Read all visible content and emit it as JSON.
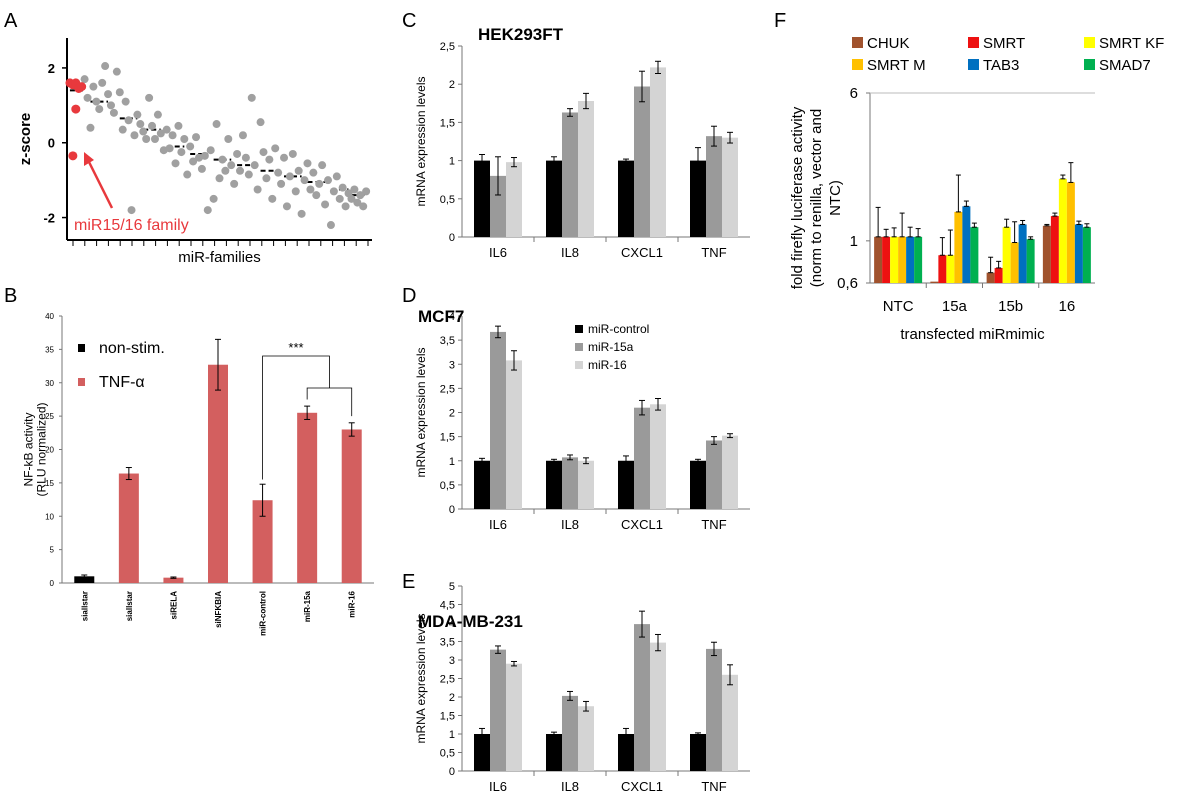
{
  "colors": {
    "black": "#000000",
    "dark_gray": "#9a9a9a",
    "light_gray": "#d4d4d4",
    "red_bar": "#d35f5f",
    "scatter_gray": "#a0a0a0",
    "scatter_red": "#e8393d",
    "CHUK": "#a0522d",
    "SMRT": "#ee1111",
    "SMRT KF": "#ffff00",
    "SMRT M": "#ffc000",
    "TAB3": "#0070c0",
    "SMAD7": "#00b050"
  },
  "chart_data": [
    {
      "panel": "A",
      "type": "scatter",
      "xlabel": "miR-families",
      "ylabel": "z-score",
      "yticks": [
        "2",
        "0",
        "-2"
      ],
      "ylim": [
        -2.6,
        2.8
      ],
      "annotation": "miR15/16 family",
      "highlight_points": [
        {
          "x": 1,
          "y": 1.6
        },
        {
          "x": 2,
          "y": 1.55
        },
        {
          "x": 3,
          "y": 1.6
        },
        {
          "x": 4,
          "y": 1.45
        },
        {
          "x": 5,
          "y": 1.5
        },
        {
          "x": 3,
          "y": 0.9
        },
        {
          "x": 2,
          "y": -0.35
        }
      ],
      "points": [
        {
          "x": 6,
          "y": 1.7
        },
        {
          "x": 7,
          "y": 1.2
        },
        {
          "x": 8,
          "y": 0.4
        },
        {
          "x": 9,
          "y": 1.5
        },
        {
          "x": 10,
          "y": 1.1
        },
        {
          "x": 11,
          "y": 0.9
        },
        {
          "x": 12,
          "y": 1.6
        },
        {
          "x": 13,
          "y": 2.05
        },
        {
          "x": 14,
          "y": 1.3
        },
        {
          "x": 15,
          "y": 1.0
        },
        {
          "x": 16,
          "y": 0.8
        },
        {
          "x": 17,
          "y": 1.9
        },
        {
          "x": 18,
          "y": 1.35
        },
        {
          "x": 19,
          "y": 0.35
        },
        {
          "x": 20,
          "y": 1.1
        },
        {
          "x": 21,
          "y": 0.6
        },
        {
          "x": 22,
          "y": -1.8
        },
        {
          "x": 23,
          "y": 0.2
        },
        {
          "x": 24,
          "y": 0.75
        },
        {
          "x": 25,
          "y": 0.5
        },
        {
          "x": 26,
          "y": 0.3
        },
        {
          "x": 27,
          "y": 0.1
        },
        {
          "x": 28,
          "y": 1.2
        },
        {
          "x": 29,
          "y": 0.45
        },
        {
          "x": 30,
          "y": 0.1
        },
        {
          "x": 31,
          "y": 0.75
        },
        {
          "x": 32,
          "y": 0.25
        },
        {
          "x": 33,
          "y": -0.2
        },
        {
          "x": 34,
          "y": 0.35
        },
        {
          "x": 35,
          "y": -0.15
        },
        {
          "x": 36,
          "y": 0.2
        },
        {
          "x": 37,
          "y": -0.55
        },
        {
          "x": 38,
          "y": 0.45
        },
        {
          "x": 39,
          "y": -0.25
        },
        {
          "x": 40,
          "y": 0.1
        },
        {
          "x": 41,
          "y": -0.85
        },
        {
          "x": 42,
          "y": -0.1
        },
        {
          "x": 43,
          "y": -0.5
        },
        {
          "x": 44,
          "y": 0.15
        },
        {
          "x": 45,
          "y": -0.4
        },
        {
          "x": 46,
          "y": -0.7
        },
        {
          "x": 47,
          "y": -0.35
        },
        {
          "x": 48,
          "y": -1.8
        },
        {
          "x": 49,
          "y": -0.2
        },
        {
          "x": 50,
          "y": -1.5
        },
        {
          "x": 51,
          "y": 0.5
        },
        {
          "x": 52,
          "y": -0.95
        },
        {
          "x": 53,
          "y": -0.45
        },
        {
          "x": 54,
          "y": -0.75
        },
        {
          "x": 55,
          "y": 0.1
        },
        {
          "x": 56,
          "y": -0.6
        },
        {
          "x": 57,
          "y": -1.1
        },
        {
          "x": 58,
          "y": -0.3
        },
        {
          "x": 59,
          "y": -0.75
        },
        {
          "x": 60,
          "y": 0.2
        },
        {
          "x": 61,
          "y": -0.4
        },
        {
          "x": 62,
          "y": -0.85
        },
        {
          "x": 63,
          "y": 1.2
        },
        {
          "x": 64,
          "y": -0.6
        },
        {
          "x": 65,
          "y": -1.25
        },
        {
          "x": 66,
          "y": 0.55
        },
        {
          "x": 67,
          "y": -0.25
        },
        {
          "x": 68,
          "y": -0.95
        },
        {
          "x": 69,
          "y": -0.45
        },
        {
          "x": 70,
          "y": -1.5
        },
        {
          "x": 71,
          "y": -0.15
        },
        {
          "x": 72,
          "y": -0.8
        },
        {
          "x": 73,
          "y": -1.1
        },
        {
          "x": 74,
          "y": -0.4
        },
        {
          "x": 75,
          "y": -1.7
        },
        {
          "x": 76,
          "y": -0.9
        },
        {
          "x": 77,
          "y": -0.3
        },
        {
          "x": 78,
          "y": -1.3
        },
        {
          "x": 79,
          "y": -0.75
        },
        {
          "x": 80,
          "y": -1.9
        },
        {
          "x": 81,
          "y": -1.0
        },
        {
          "x": 82,
          "y": -0.55
        },
        {
          "x": 83,
          "y": -1.25
        },
        {
          "x": 84,
          "y": -0.8
        },
        {
          "x": 85,
          "y": -1.4
        },
        {
          "x": 86,
          "y": -1.1
        },
        {
          "x": 87,
          "y": -0.6
        },
        {
          "x": 88,
          "y": -1.65
        },
        {
          "x": 89,
          "y": -1.0
        },
        {
          "x": 90,
          "y": -2.2
        },
        {
          "x": 91,
          "y": -1.3
        },
        {
          "x": 92,
          "y": -0.9
        },
        {
          "x": 93,
          "y": -1.5
        },
        {
          "x": 94,
          "y": -1.2
        },
        {
          "x": 95,
          "y": -1.7
        },
        {
          "x": 96,
          "y": -1.35
        },
        {
          "x": 97,
          "y": -1.5
        },
        {
          "x": 98,
          "y": -1.25
        },
        {
          "x": 99,
          "y": -1.6
        },
        {
          "x": 100,
          "y": -1.4
        },
        {
          "x": 101,
          "y": -1.7
        },
        {
          "x": 102,
          "y": -1.3
        }
      ],
      "trend_segments": [
        {
          "x0": 1,
          "x1": 6,
          "y": 1.4
        },
        {
          "x0": 8,
          "x1": 14,
          "y": 1.1
        },
        {
          "x0": 18,
          "x1": 24,
          "y": 0.65
        },
        {
          "x0": 26,
          "x1": 32,
          "y": 0.35
        },
        {
          "x0": 34,
          "x1": 40,
          "y": -0.1
        },
        {
          "x0": 42,
          "x1": 48,
          "y": -0.3
        },
        {
          "x0": 50,
          "x1": 56,
          "y": -0.45
        },
        {
          "x0": 58,
          "x1": 64,
          "y": -0.6
        },
        {
          "x0": 66,
          "x1": 72,
          "y": -0.75
        },
        {
          "x0": 74,
          "x1": 80,
          "y": -0.9
        },
        {
          "x0": 82,
          "x1": 88,
          "y": -1.05
        },
        {
          "x0": 90,
          "x1": 96,
          "y": -1.25
        },
        {
          "x0": 97,
          "x1": 102,
          "y": -1.4
        }
      ],
      "xlim": [
        0,
        104
      ]
    },
    {
      "panel": "B",
      "type": "bar",
      "ylabel": "NF-kB activity\n(RLU normalized)",
      "ylim": [
        0,
        40
      ],
      "yticks": [
        "0",
        "5",
        "10",
        "15",
        "20",
        "25",
        "30",
        "35",
        "40"
      ],
      "categories": [
        "siallstar",
        "siallstar",
        "siRELA",
        "siNFKBIA",
        "miR-control",
        "miR-15a",
        "miR-16"
      ],
      "values": [
        1.0,
        16.4,
        0.8,
        32.7,
        12.4,
        25.5,
        23.0
      ],
      "errors": [
        0.2,
        0.9,
        0.1,
        3.8,
        2.4,
        1.0,
        1.0
      ],
      "groups": [
        "non-stim.",
        "TNF-α",
        "TNF-α",
        "TNF-α",
        "TNF-α",
        "TNF-α",
        "TNF-α"
      ],
      "legend": [
        "non-stim.",
        "TNF-α"
      ],
      "significance": "***"
    },
    {
      "panel": "C",
      "type": "bar",
      "title": "HEK293FT",
      "ylabel": "mRNA expression levels",
      "ylim": [
        0,
        2.5
      ],
      "yticks": [
        "0",
        "0,5",
        "1",
        "1,5",
        "2",
        "2,5"
      ],
      "categories": [
        "IL6",
        "IL8",
        "CXCL1",
        "TNF"
      ],
      "series": [
        {
          "values": [
            1.0,
            1.0,
            1.0,
            1.0
          ],
          "errors": [
            0.08,
            0.05,
            0.02,
            0.17
          ]
        },
        {
          "values": [
            0.8,
            1.63,
            1.97,
            1.32
          ],
          "errors": [
            0.25,
            0.05,
            0.2,
            0.13
          ]
        },
        {
          "values": [
            0.98,
            1.78,
            2.22,
            1.3
          ],
          "errors": [
            0.06,
            0.1,
            0.08,
            0.07
          ]
        }
      ]
    },
    {
      "panel": "D",
      "type": "bar",
      "title": "MCF7",
      "ylabel": "mRNA expression levels",
      "ylim": [
        0,
        4
      ],
      "yticks": [
        "0",
        "0,5",
        "1",
        "1,5",
        "2",
        "2,5",
        "3",
        "3,5",
        "4"
      ],
      "categories": [
        "IL6",
        "IL8",
        "CXCL1",
        "TNF"
      ],
      "legend": [
        "miR-control",
        "miR-15a",
        "miR-16"
      ],
      "series": [
        {
          "name": "miR-control",
          "values": [
            1.0,
            1.0,
            1.0,
            1.0
          ],
          "errors": [
            0.05,
            0.03,
            0.1,
            0.03
          ]
        },
        {
          "name": "miR-15a",
          "values": [
            3.67,
            1.07,
            2.1,
            1.42
          ],
          "errors": [
            0.12,
            0.05,
            0.15,
            0.08
          ]
        },
        {
          "name": "miR-16",
          "values": [
            3.08,
            1.0,
            2.17,
            1.52
          ],
          "errors": [
            0.2,
            0.06,
            0.12,
            0.04
          ]
        }
      ]
    },
    {
      "panel": "E",
      "type": "bar",
      "title": "MDA-MB-231",
      "ylabel": "mRNA expression levels",
      "ylim": [
        0,
        5
      ],
      "yticks": [
        "0",
        "0,5",
        "1",
        "1,5",
        "2",
        "2,5",
        "3",
        "3,5",
        "4",
        "4,5",
        "5"
      ],
      "categories": [
        "IL6",
        "IL8",
        "CXCL1",
        "TNF"
      ],
      "series": [
        {
          "values": [
            1.0,
            1.0,
            1.0,
            1.0
          ],
          "errors": [
            0.15,
            0.05,
            0.15,
            0.03
          ]
        },
        {
          "values": [
            3.28,
            2.03,
            3.97,
            3.3
          ],
          "errors": [
            0.1,
            0.12,
            0.35,
            0.18
          ]
        },
        {
          "values": [
            2.9,
            1.75,
            3.47,
            2.6
          ],
          "errors": [
            0.06,
            0.13,
            0.22,
            0.27
          ]
        }
      ]
    },
    {
      "panel": "F",
      "type": "bar",
      "ylabel": "fold firefly luciferase activity\n(norm to renilla, vector and\nNTC)",
      "xlabel": "transfected miRmimic",
      "yscale": "log",
      "ylim": [
        0.6,
        6
      ],
      "yticks": [
        "0,6",
        "1",
        "6"
      ],
      "categories": [
        "NTC",
        "15a",
        "15b",
        "16"
      ],
      "legend": [
        "CHUK",
        "SMRT",
        "SMRT KF",
        "SMRT M",
        "TAB3",
        "SMAD7"
      ],
      "series": [
        {
          "name": "CHUK",
          "values": [
            1.05,
            0.61,
            0.68,
            1.2
          ],
          "errors": [
            0.45,
            0,
            0.14,
            0.02
          ]
        },
        {
          "name": "SMRT",
          "values": [
            1.05,
            0.84,
            0.72,
            1.35
          ],
          "errors": [
            0.1,
            0.2,
            0.06,
            0.05
          ]
        },
        {
          "name": "SMRT KF",
          "values": [
            1.05,
            0.84,
            1.18,
            2.12
          ],
          "errors": [
            0.12,
            0.3,
            0.12,
            0.1
          ]
        },
        {
          "name": "SMRT M",
          "values": [
            1.05,
            1.42,
            0.98,
            2.03
          ],
          "errors": [
            0.35,
            0.8,
            0.28,
            0.55
          ]
        },
        {
          "name": "TAB3",
          "values": [
            1.05,
            1.52,
            1.22,
            1.22
          ],
          "errors": [
            0.13,
            0.1,
            0.06,
            0.05
          ]
        },
        {
          "name": "SMAD7",
          "values": [
            1.05,
            1.18,
            1.02,
            1.18
          ],
          "errors": [
            0.11,
            0.06,
            0.03,
            0.05
          ]
        }
      ]
    }
  ],
  "panel_letters": [
    "A",
    "B",
    "C",
    "D",
    "E",
    "F"
  ]
}
